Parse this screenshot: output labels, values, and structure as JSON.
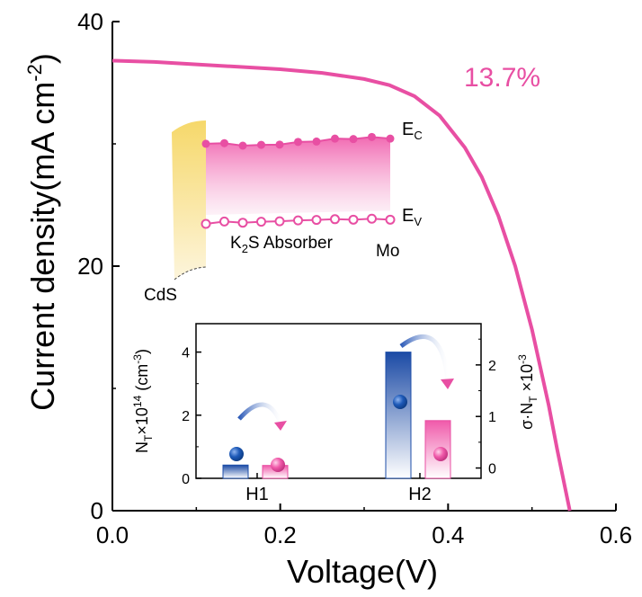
{
  "chart_data": [
    {
      "type": "line",
      "xlabel": "Voltage(V)",
      "ylabel": "Current density(mA cm",
      "ylabel_sup": "-2",
      "ylabel_close": ")",
      "xlim": [
        0.0,
        0.6
      ],
      "ylim": [
        0,
        40
      ],
      "xticks": [
        "0.0",
        "0.2",
        "0.4",
        "0.6"
      ],
      "yticks": [
        "0",
        "20",
        "40"
      ],
      "annotation": "13.7%",
      "series": [
        {
          "color": "#e84fa3",
          "x": [
            0.0,
            0.05,
            0.1,
            0.15,
            0.2,
            0.25,
            0.3,
            0.33,
            0.36,
            0.39,
            0.42,
            0.44,
            0.46,
            0.48,
            0.5,
            0.52,
            0.53,
            0.545
          ],
          "y": [
            36.8,
            36.7,
            36.5,
            36.3,
            36.1,
            35.8,
            35.3,
            34.8,
            33.9,
            32.3,
            29.7,
            27.3,
            24.1,
            20.0,
            14.8,
            8.6,
            5.0,
            0.0
          ]
        }
      ]
    },
    {
      "type": "bar",
      "categories": [
        "H1",
        "H2"
      ],
      "y_left_label": "N",
      "y_left_label_sub": "T",
      "y_left_label_mid": "×10",
      "y_left_label_sup": "14",
      "y_left_label_tail": " (cm",
      "y_left_label_sup2": "-3",
      "y_left_label_end": ")",
      "y_right_label": "σ·N",
      "y_right_label_sub": "T",
      "y_right_label_mid": " ×10",
      "y_right_label_sup": "-3",
      "ylim_left": [
        0,
        4.9
      ],
      "ylim_right": [
        -0.2,
        2.8
      ],
      "yticks_left": [
        "0",
        "2",
        "4"
      ],
      "yticks_right": [
        "0",
        "1",
        "2"
      ],
      "series": [
        {
          "axis": "left",
          "color": "#1d4ea8",
          "values": [
            0.42,
            4.0
          ]
        },
        {
          "axis": "right",
          "color": "#e84fa3",
          "values": [
            0.05,
            0.92
          ]
        }
      ]
    }
  ],
  "band_diagram": {
    "labels": {
      "ec": "E",
      "ec_sub": "C",
      "ev": "E",
      "ev_sub": "V",
      "absorber_pre": "K",
      "absorber_sub": "2",
      "absorber_post": "S Absorber",
      "mo": "Mo",
      "cds": "CdS"
    },
    "colors": {
      "band": "#e84fa3",
      "cds": "#f7dc7a"
    },
    "ec_levels": [
      0.45,
      0.6,
      0.0,
      0.2,
      0.25,
      0.9,
      1.0,
      1.7,
      1.6,
      2.1,
      1.7
    ],
    "ev_levels": [
      0.0,
      0.5,
      0.25,
      0.45,
      0.55,
      0.75,
      0.85,
      1.0,
      0.9,
      1.1,
      0.9
    ]
  }
}
